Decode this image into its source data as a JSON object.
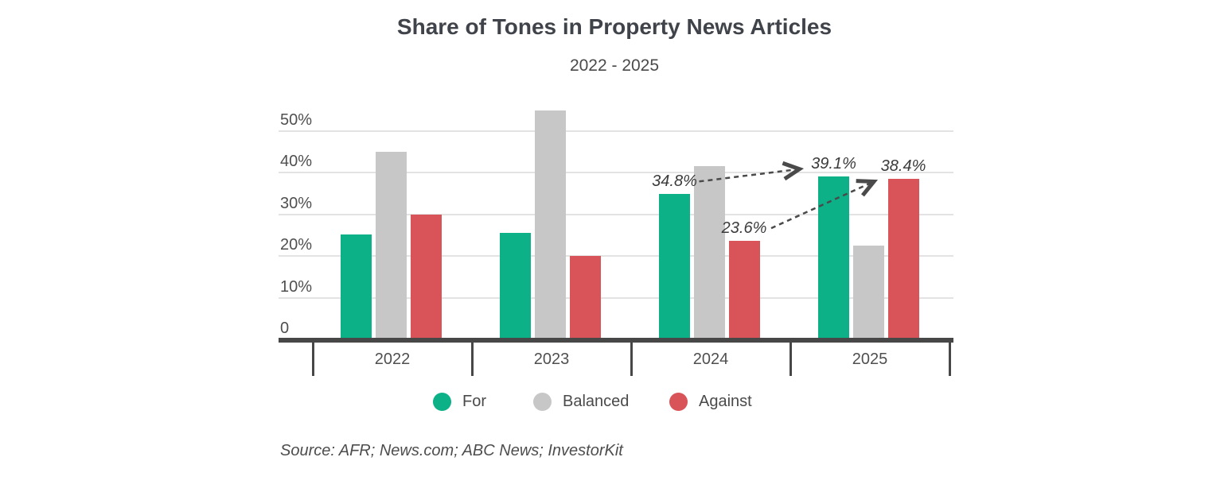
{
  "title": "Share of Tones in Property News Articles",
  "subtitle": "2022 - 2025",
  "source": "Source: AFR; News.com; ABC News; InvestorKit",
  "colors": {
    "for_green": "#0cb187",
    "balanced_gray": "#c7c7c7",
    "against_red": "#d85459",
    "axis": "#474747",
    "gridline": "#e3e3e3",
    "label_text": "#4f4f4f",
    "annotation_text": "#3b3b3b",
    "arrow": "#4a4a4a"
  },
  "legend": [
    {
      "label": "For",
      "color": "#0cb187"
    },
    {
      "label": "Balanced",
      "color": "#c7c7c7"
    },
    {
      "label": "Against",
      "color": "#d85459"
    }
  ],
  "chart_data": {
    "type": "bar",
    "title": "Share of Tones in Property News Articles",
    "subtitle": "2022 - 2025",
    "categories": [
      "2022",
      "2023",
      "2024",
      "2025"
    ],
    "series": [
      {
        "name": "For",
        "color": "#0cb187",
        "values": [
          25.2,
          25.5,
          34.8,
          39.1
        ]
      },
      {
        "name": "Balanced",
        "color": "#c7c7c7",
        "values": [
          44.9,
          54.8,
          41.6,
          22.5
        ]
      },
      {
        "name": "Against",
        "color": "#d85459",
        "values": [
          30.0,
          20.0,
          23.6,
          38.4
        ]
      }
    ],
    "xlabel": "",
    "ylabel": "",
    "y_ticks": [
      "0",
      "10%",
      "20%",
      "30%",
      "40%",
      "50%"
    ],
    "y_tick_values": [
      0,
      10,
      20,
      30,
      40,
      50
    ],
    "ylim": [
      0,
      55
    ],
    "grid": true,
    "legend_position": "bottom",
    "annotations": [
      {
        "text": "34.8%",
        "series": "For",
        "category": "2024"
      },
      {
        "text": "23.6%",
        "series": "Against",
        "category": "2024"
      },
      {
        "text": "39.1%",
        "series": "For",
        "category": "2025"
      },
      {
        "text": "38.4%",
        "series": "Against",
        "category": "2025"
      }
    ],
    "arrows": [
      {
        "from": "34.8%",
        "to": "39.1%",
        "style": "dashed"
      },
      {
        "from": "23.6%",
        "to": "38.4%",
        "style": "dashed"
      }
    ]
  }
}
